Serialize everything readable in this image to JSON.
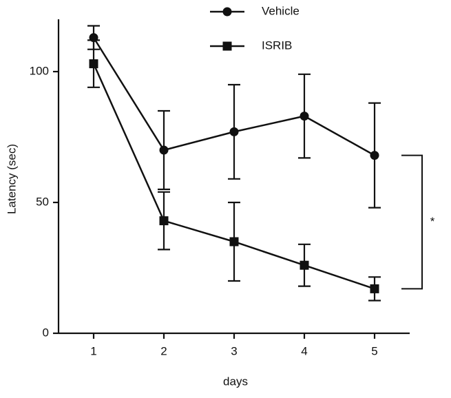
{
  "chart_data": {
    "type": "line",
    "x_label": "days",
    "y_label": "Latency (sec)",
    "x": [
      1,
      2,
      3,
      4,
      5
    ],
    "xlim": [
      0.5,
      5.5
    ],
    "xticks": [
      1,
      2,
      3,
      4,
      5
    ],
    "ylim": [
      0,
      120
    ],
    "yticks": [
      0,
      50,
      100
    ],
    "grid": false,
    "series": [
      {
        "name": "Vehicle",
        "color": "#111111",
        "marker": "circle",
        "values": [
          113,
          70,
          77,
          83,
          68
        ],
        "errors": [
          4.5,
          15,
          18,
          16,
          20
        ]
      },
      {
        "name": "ISRIB",
        "color": "#111111",
        "marker": "square",
        "values": [
          103,
          43,
          35,
          26,
          17
        ],
        "errors": [
          9,
          11,
          15,
          8,
          4.5
        ]
      }
    ],
    "annotation": "*"
  }
}
